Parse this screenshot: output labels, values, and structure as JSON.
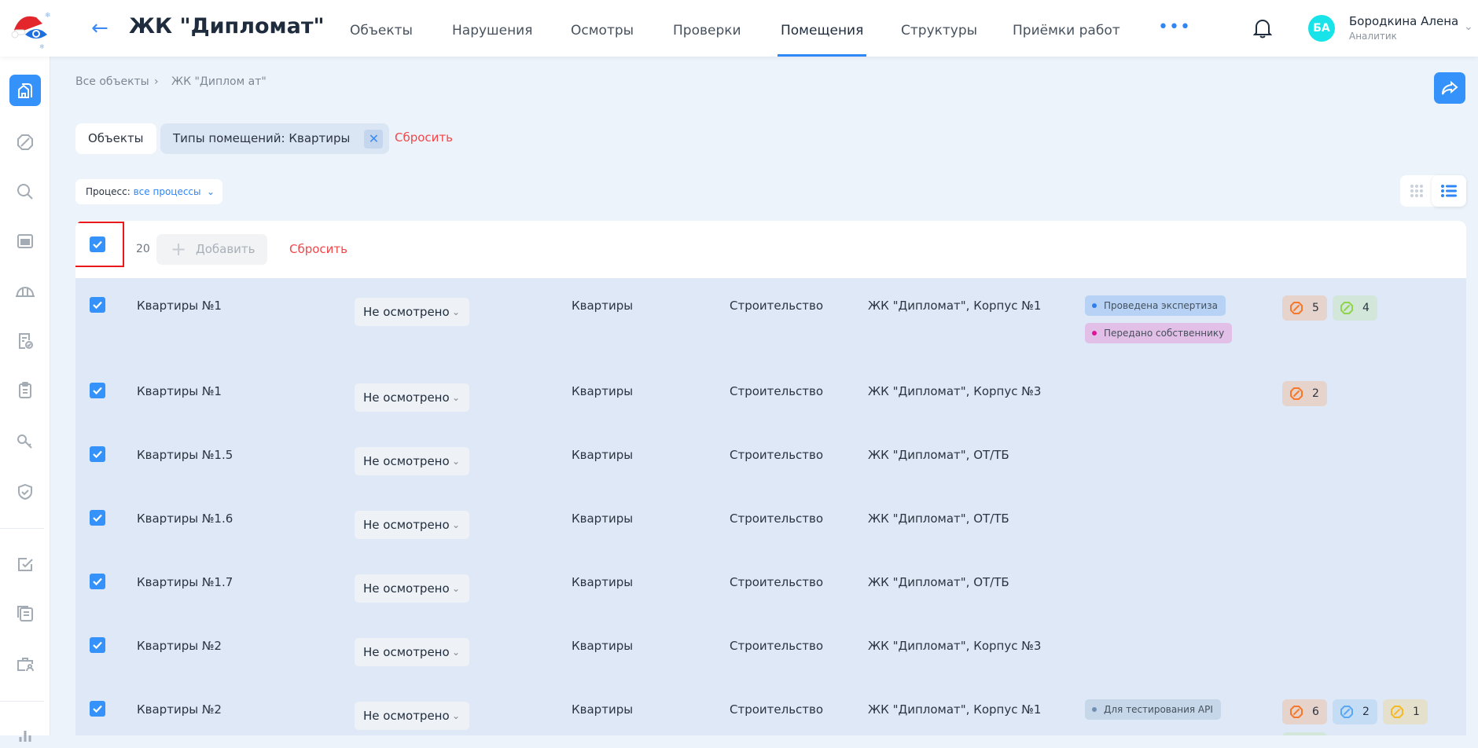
{
  "header": {
    "title": "ЖК \"Дипломат\"",
    "nav": [
      {
        "label": "Объекты",
        "active": false
      },
      {
        "label": "Нарушения",
        "active": false
      },
      {
        "label": "Осмотры",
        "active": false
      },
      {
        "label": "Проверки",
        "active": false
      },
      {
        "label": "Помещения",
        "active": true
      },
      {
        "label": "Структуры",
        "active": false
      },
      {
        "label": "Приёмки работ",
        "active": false
      }
    ],
    "more": "•••",
    "user": {
      "initials": "БА",
      "name": "Бородкина Алена",
      "role": "Аналитик",
      "avatar_color": "#17e3e8"
    }
  },
  "sidebar": {
    "items": [
      "home-building",
      "violations",
      "inspections",
      "rooms",
      "construction",
      "checks",
      "checklists",
      "keys",
      "security",
      "tasks",
      "documents",
      "contractors",
      "analytics"
    ],
    "active": "home-building"
  },
  "breadcrumb": [
    "Все объекты",
    "ЖК \"Диплом ат\""
  ],
  "filters": {
    "objects_chip": "Объекты",
    "type_chip": "Типы помещений: Квартиры",
    "reset": "Сбросить",
    "process_label": "Процесс:",
    "process_value": "все процессы"
  },
  "toolbar": {
    "selected_count": "20",
    "add_label": "Добавить",
    "reset_label": "Сбросить",
    "select_all_checked": true
  },
  "colors": {
    "accent": "#3592fb",
    "danger": "#f0484a",
    "row_bg": "#dfe8f6"
  },
  "rows": [
    {
      "name": "Квартиры №1",
      "status": "Не осмотрено",
      "type": "Квартиры",
      "stage": "Строительство",
      "address": "ЖК \"Дипломат\", Корпус №1",
      "tags": [
        {
          "label": "Проведена экспертиза",
          "bg": "#b7d2f4",
          "dot": "#2f7ef0"
        },
        {
          "label": "Передано собственнику",
          "bg": "#e1bfe6",
          "dot": "#e0149a"
        }
      ],
      "badges": [
        {
          "count": "5",
          "color": "orange"
        },
        {
          "count": "4",
          "color": "green"
        }
      ]
    },
    {
      "name": "Квартиры №1",
      "status": "Не осмотрено",
      "type": "Квартиры",
      "stage": "Строительство",
      "address": "ЖК \"Дипломат\", Корпус №3",
      "tags": [],
      "badges": [
        {
          "count": "2",
          "color": "orange"
        }
      ]
    },
    {
      "name": "Квартиры №1.5",
      "status": "Не осмотрено",
      "type": "Квартиры",
      "stage": "Строительство",
      "address": "ЖК \"Дипломат\", ОТ/ТБ",
      "tags": [],
      "badges": []
    },
    {
      "name": "Квартиры №1.6",
      "status": "Не осмотрено",
      "type": "Квартиры",
      "stage": "Строительство",
      "address": "ЖК \"Дипломат\", ОТ/ТБ",
      "tags": [],
      "badges": []
    },
    {
      "name": "Квартиры №1.7",
      "status": "Не осмотрено",
      "type": "Квартиры",
      "stage": "Строительство",
      "address": "ЖК \"Дипломат\", ОТ/ТБ",
      "tags": [],
      "badges": []
    },
    {
      "name": "Квартиры №2",
      "status": "Не осмотрено",
      "type": "Квартиры",
      "stage": "Строительство",
      "address": "ЖК \"Дипломат\", Корпус №3",
      "tags": [],
      "badges": []
    },
    {
      "name": "Квартиры №2",
      "status": "Не осмотрено",
      "type": "Квартиры",
      "stage": "Строительство",
      "address": "ЖК \"Дипломат\", Корпус №1",
      "tags": [
        {
          "label": "Для тестирования API",
          "bg": "#c6d7ea",
          "dot": "#6f8fb3"
        }
      ],
      "badges": [
        {
          "count": "6",
          "color": "orange"
        },
        {
          "count": "2",
          "color": "blue"
        },
        {
          "count": "1",
          "color": "yellow"
        },
        {
          "color": "green"
        }
      ]
    }
  ]
}
